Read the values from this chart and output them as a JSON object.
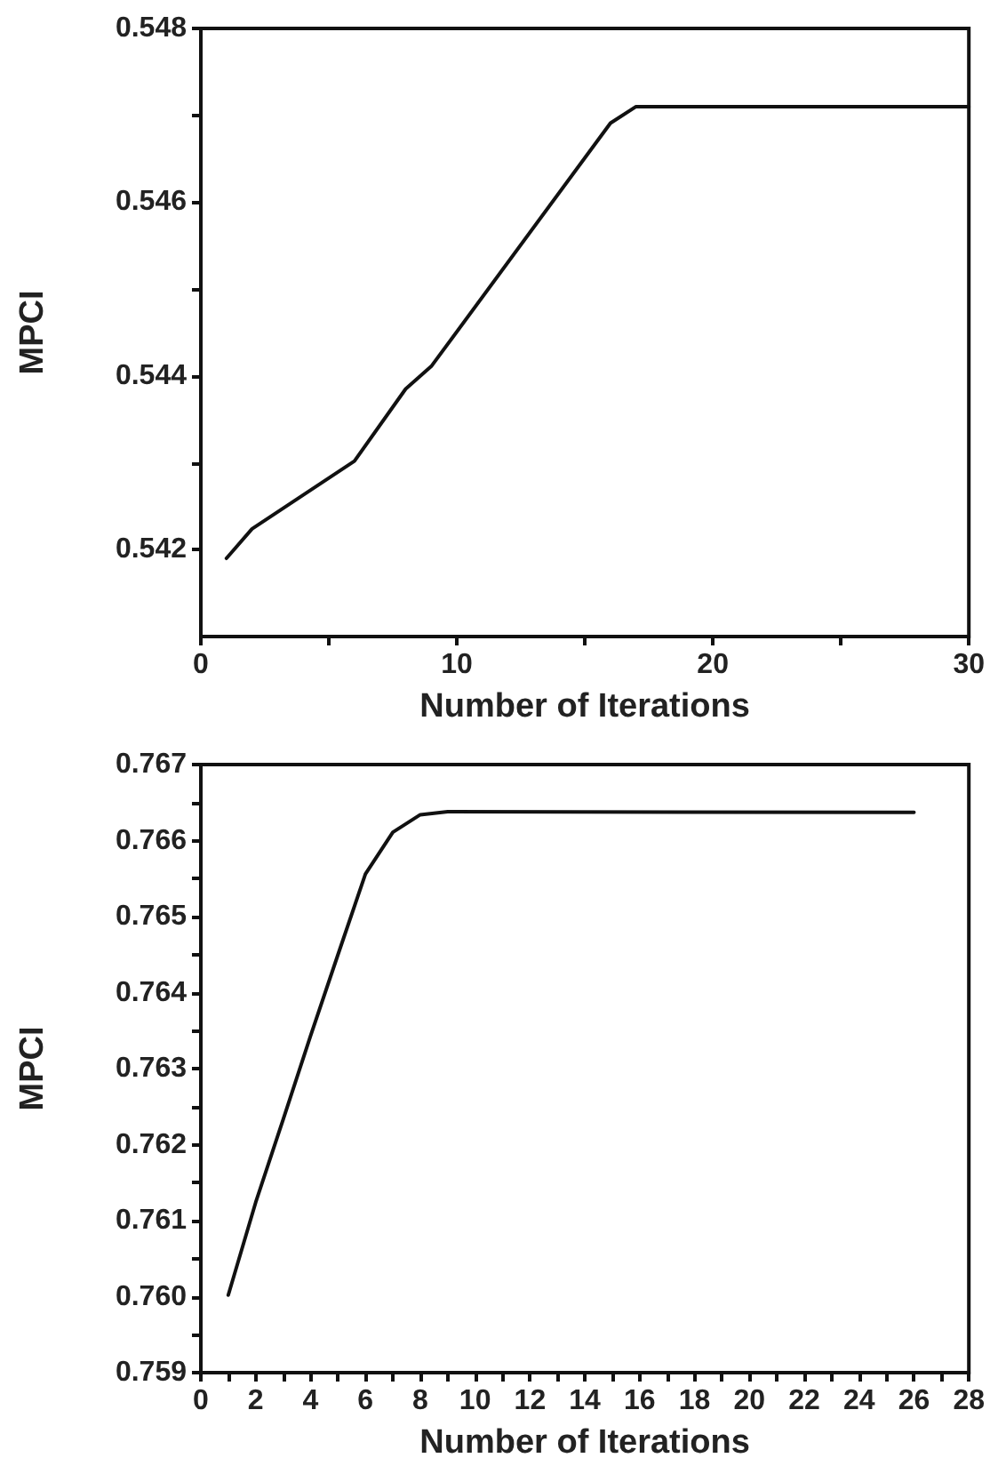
{
  "chart_data": [
    {
      "type": "line",
      "xlabel": "Number of Iterations",
      "ylabel": "MPCI",
      "grid": false,
      "marker": "none",
      "line_style": "solid",
      "x": [
        1,
        2,
        6,
        8,
        9,
        16,
        17,
        30
      ],
      "series": [
        {
          "color": "#111111",
          "values": [
            0.5419,
            0.54224,
            0.54302,
            0.54385,
            0.54411,
            0.54691,
            0.5471,
            0.5471
          ]
        }
      ],
      "xlim": [
        0,
        30
      ],
      "xticks": [
        0,
        {
          "value": 5,
          "label": null
        },
        10,
        {
          "value": 15,
          "label": null
        },
        20,
        {
          "value": 25,
          "label": null
        },
        30
      ],
      "ylim": [
        0.541,
        0.548
      ],
      "yticks": [
        0.542,
        {
          "value": 0.543,
          "label": null
        },
        0.544,
        {
          "value": 0.545,
          "label": null
        },
        0.546,
        {
          "value": 0.547,
          "label": null
        },
        0.548
      ]
    },
    {
      "type": "line",
      "xlabel": "Number of Iterations",
      "ylabel": "MPCI",
      "grid": false,
      "marker": "none",
      "line_style": "solid",
      "x": [
        1,
        2,
        3,
        4,
        5,
        6,
        7,
        8,
        9,
        26
      ],
      "series": [
        {
          "color": "#111111",
          "values": [
            0.76002,
            0.76124,
            0.76233,
            0.76343,
            0.7645,
            0.76556,
            0.76611,
            0.76634,
            0.76638,
            0.76637
          ]
        }
      ],
      "xlim": [
        0,
        28
      ],
      "xticks": [
        0,
        {
          "value": 1,
          "label": null
        },
        2,
        {
          "value": 3,
          "label": null
        },
        4,
        {
          "value": 5,
          "label": null
        },
        6,
        {
          "value": 7,
          "label": null
        },
        8,
        {
          "value": 9,
          "label": null
        },
        10,
        {
          "value": 11,
          "label": null
        },
        12,
        {
          "value": 13,
          "label": null
        },
        14,
        {
          "value": 15,
          "label": null
        },
        16,
        {
          "value": 17,
          "label": null
        },
        18,
        {
          "value": 19,
          "label": null
        },
        20,
        {
          "value": 21,
          "label": null
        },
        22,
        {
          "value": 23,
          "label": null
        },
        24,
        {
          "value": 25,
          "label": null
        },
        26,
        {
          "value": 27,
          "label": null
        },
        28
      ],
      "ylim": [
        0.759,
        0.767
      ],
      "yticks": [
        {
          "value": 0.759,
          "label": "0.759"
        },
        {
          "value": 0.7595,
          "label": null
        },
        {
          "value": 0.76,
          "label": "0.760"
        },
        {
          "value": 0.7605,
          "label": null
        },
        {
          "value": 0.761,
          "label": "0.761"
        },
        {
          "value": 0.7615,
          "label": null
        },
        {
          "value": 0.762,
          "label": "0.762"
        },
        {
          "value": 0.7625,
          "label": null
        },
        {
          "value": 0.763,
          "label": "0.763"
        },
        {
          "value": 0.7635,
          "label": null
        },
        {
          "value": 0.764,
          "label": "0.764"
        },
        {
          "value": 0.7645,
          "label": null
        },
        {
          "value": 0.765,
          "label": "0.765"
        },
        {
          "value": 0.7655,
          "label": null
        },
        {
          "value": 0.766,
          "label": "0.766"
        },
        {
          "value": 0.7665,
          "label": null
        },
        {
          "value": 0.767,
          "label": "0.767"
        }
      ]
    }
  ]
}
